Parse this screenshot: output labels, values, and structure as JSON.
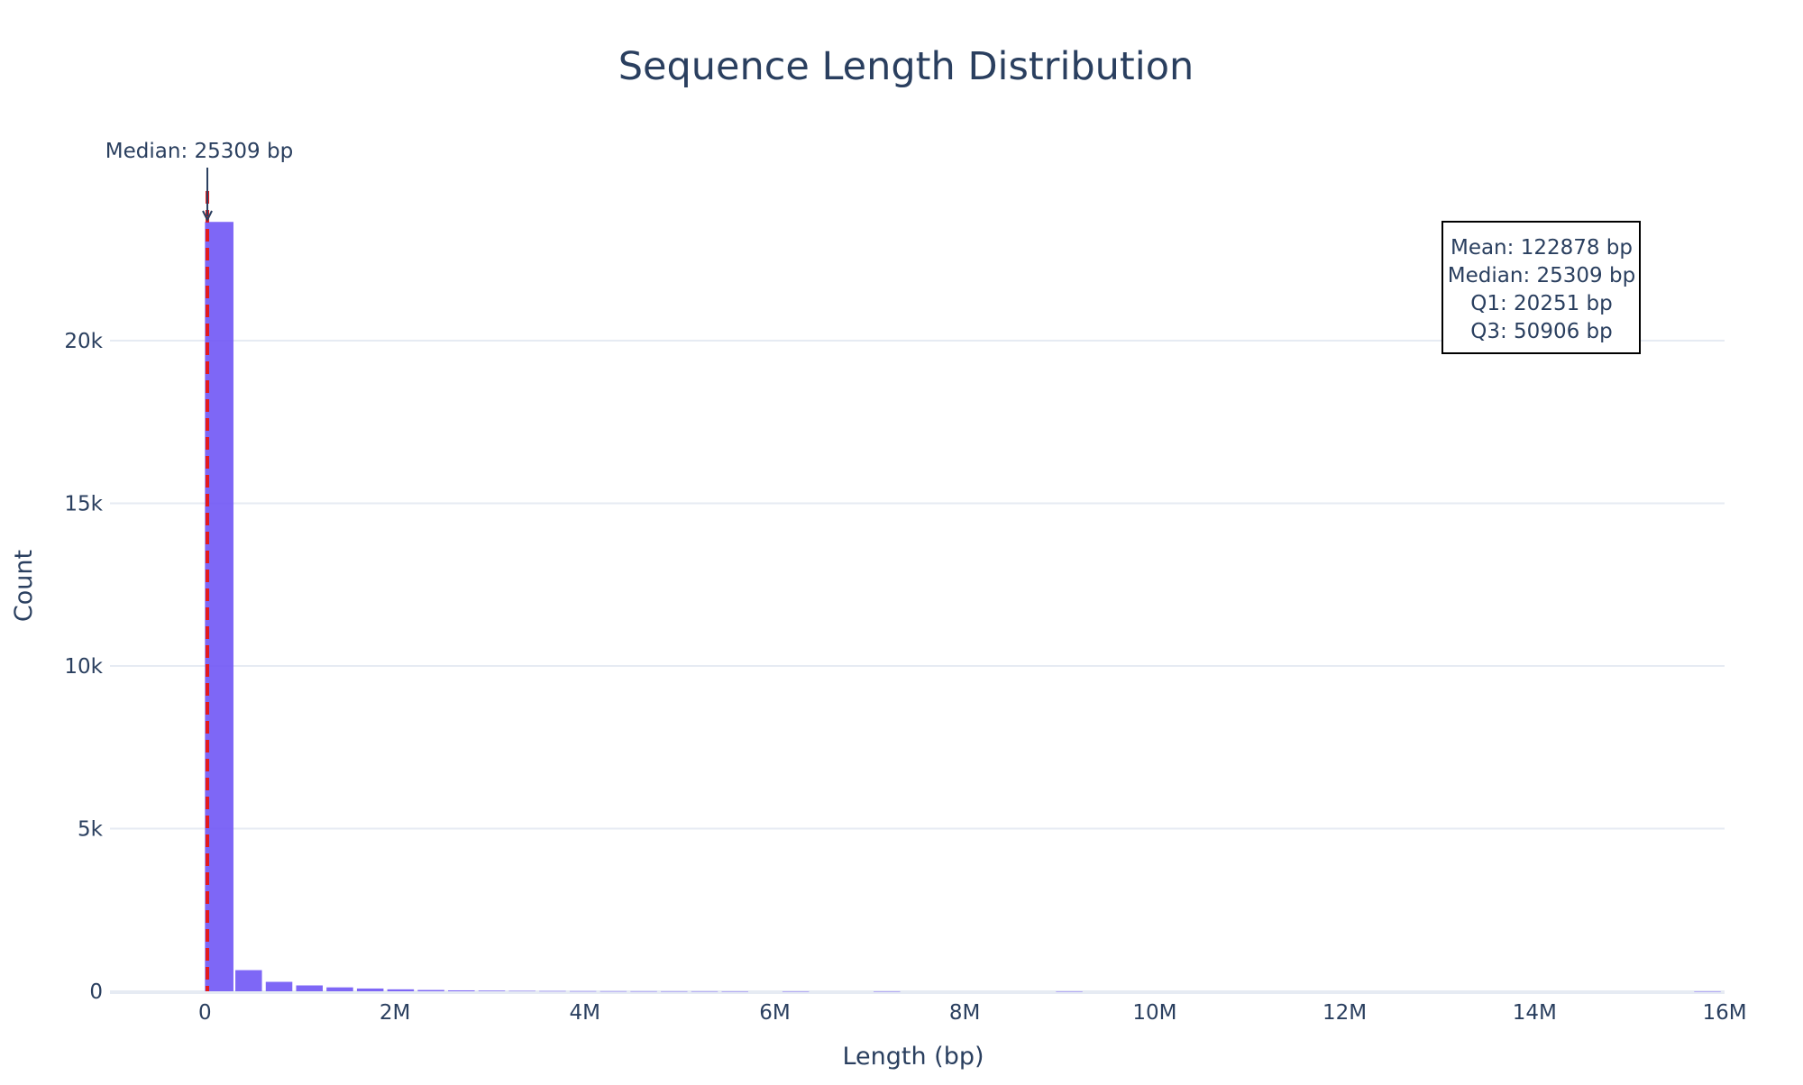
{
  "chart_data": {
    "type": "bar",
    "title": "Sequence Length Distribution",
    "xlabel": "Length (bp)",
    "ylabel": "Count",
    "xlim": [
      -1000000,
      16000000
    ],
    "ylim": [
      0,
      25000
    ],
    "x_ticks": [
      {
        "value": 0,
        "label": "0"
      },
      {
        "value": 2000000,
        "label": "2M"
      },
      {
        "value": 4000000,
        "label": "4M"
      },
      {
        "value": 6000000,
        "label": "6M"
      },
      {
        "value": 8000000,
        "label": "8M"
      },
      {
        "value": 10000000,
        "label": "10M"
      },
      {
        "value": 12000000,
        "label": "12M"
      },
      {
        "value": 14000000,
        "label": "14M"
      },
      {
        "value": 16000000,
        "label": "16M"
      }
    ],
    "y_ticks": [
      {
        "value": 0,
        "label": "0"
      },
      {
        "value": 5000,
        "label": "5k"
      },
      {
        "value": 10000,
        "label": "10k"
      },
      {
        "value": 15000,
        "label": "15k"
      },
      {
        "value": 20000,
        "label": "20k"
      }
    ],
    "bin_width": 320000,
    "bins": [
      {
        "x0": 0,
        "x1": 300000,
        "count": 23650
      },
      {
        "x0": 320000,
        "x1": 600000,
        "count": 650
      },
      {
        "x0": 640000,
        "x1": 920000,
        "count": 290
      },
      {
        "x0": 960000,
        "x1": 1240000,
        "count": 180
      },
      {
        "x0": 1280000,
        "x1": 1560000,
        "count": 120
      },
      {
        "x0": 1600000,
        "x1": 1880000,
        "count": 85
      },
      {
        "x0": 1920000,
        "x1": 2200000,
        "count": 60
      },
      {
        "x0": 2240000,
        "x1": 2520000,
        "count": 40
      },
      {
        "x0": 2560000,
        "x1": 2840000,
        "count": 28
      },
      {
        "x0": 2880000,
        "x1": 3160000,
        "count": 20
      },
      {
        "x0": 3200000,
        "x1": 3480000,
        "count": 12
      },
      {
        "x0": 3520000,
        "x1": 3800000,
        "count": 8
      },
      {
        "x0": 3840000,
        "x1": 4120000,
        "count": 5
      },
      {
        "x0": 4160000,
        "x1": 4440000,
        "count": 4
      },
      {
        "x0": 4480000,
        "x1": 4760000,
        "count": 3
      },
      {
        "x0": 4800000,
        "x1": 5080000,
        "count": 2
      },
      {
        "x0": 5120000,
        "x1": 5400000,
        "count": 2
      },
      {
        "x0": 5440000,
        "x1": 5720000,
        "count": 1
      },
      {
        "x0": 6080000,
        "x1": 6360000,
        "count": 1
      },
      {
        "x0": 7040000,
        "x1": 7320000,
        "count": 1
      },
      {
        "x0": 8960000,
        "x1": 9240000,
        "count": 1
      },
      {
        "x0": 15680000,
        "x1": 15960000,
        "count": 1
      }
    ],
    "median_line": {
      "value": 25309,
      "color": "#e31a1c",
      "style": "dashed"
    },
    "median_annotation": "Median: 25309 bp",
    "stats_box": [
      "Mean: 122878 bp",
      "Median: 25309 bp",
      "Q1: 20251 bp",
      "Q3: 50906 bp"
    ],
    "bar_color": "#7056f5",
    "grid": true,
    "legend": "none"
  }
}
